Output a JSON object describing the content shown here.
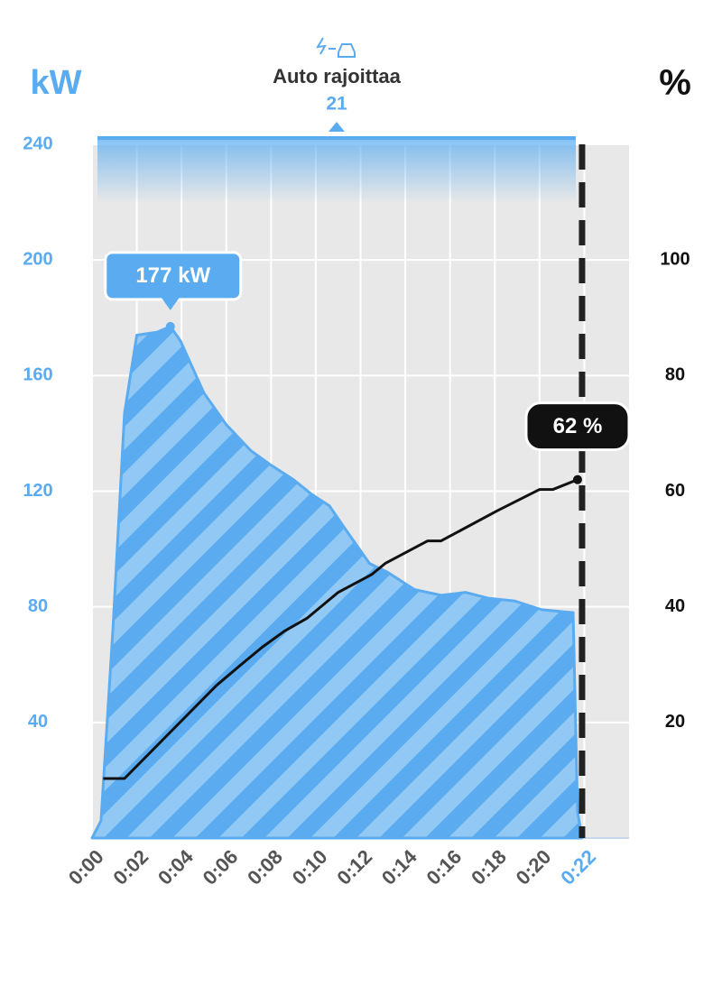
{
  "chart_data": {
    "type": "area-line",
    "y_axis_label": "kW",
    "y2_axis_label": "%",
    "limit_title": "Auto rajoittaa",
    "limit_value": 21,
    "xlim": [
      0,
      24
    ],
    "xticks": [
      {
        "value": 0,
        "label": "0:00"
      },
      {
        "value": 2,
        "label": "0:02"
      },
      {
        "value": 4,
        "label": "0:04"
      },
      {
        "value": 6,
        "label": "0:06"
      },
      {
        "value": 8,
        "label": "0:08"
      },
      {
        "value": 10,
        "label": "0:10"
      },
      {
        "value": 12,
        "label": "0:12"
      },
      {
        "value": 14,
        "label": "0:14"
      },
      {
        "value": 16,
        "label": "0:16"
      },
      {
        "value": 18,
        "label": "0:18"
      },
      {
        "value": 20,
        "label": "0:20"
      },
      {
        "value": 22,
        "label": "0:22"
      }
    ],
    "ylim": [
      0,
      240
    ],
    "yticks": [
      40,
      80,
      120,
      160,
      200,
      240
    ],
    "y2lim": [
      0,
      120
    ],
    "y2ticks": [
      20,
      40,
      60,
      80,
      100
    ],
    "grid": true,
    "power": {
      "color": "#5aabf0",
      "x": [
        0,
        0.4,
        0.93,
        1.45,
        2.0,
        2.9,
        3.5,
        3.95,
        5,
        6,
        7.1,
        8,
        9,
        9.8,
        10.6,
        11.4,
        12.4,
        13.2,
        14.4,
        15.6,
        16.7,
        17.7,
        18.9,
        20.1,
        21.5,
        21.7,
        21.9
      ],
      "values": [
        0,
        6,
        72,
        147,
        174,
        175,
        177,
        172,
        154,
        143,
        134,
        129,
        124,
        119,
        115,
        106,
        95,
        92,
        86,
        84,
        85,
        83,
        82,
        79,
        78,
        9,
        0
      ],
      "value_labels": [
        null,
        null,
        null,
        null,
        null,
        null,
        "177 kW",
        null,
        null,
        null,
        null,
        null,
        null,
        null,
        null,
        null,
        null,
        null,
        null,
        null,
        null,
        null,
        null,
        null,
        null,
        null,
        null
      ]
    },
    "soc": {
      "color": "#111111",
      "axis": "y2",
      "x": [
        0.5,
        1.45,
        5.56,
        6.6,
        7.6,
        8.6,
        9.6,
        11,
        12.5,
        13.1,
        15,
        15.6,
        18.1,
        20,
        20.6,
        21.7
      ],
      "values": [
        10.3,
        10.3,
        26.4,
        29.8,
        33,
        35.8,
        38,
        42.5,
        45.6,
        47.5,
        51.4,
        51.4,
        56.6,
        60.3,
        60.3,
        62
      ],
      "value_labels": [
        null,
        null,
        null,
        null,
        null,
        null,
        null,
        null,
        null,
        null,
        null,
        null,
        null,
        null,
        null,
        "62 %"
      ]
    }
  }
}
